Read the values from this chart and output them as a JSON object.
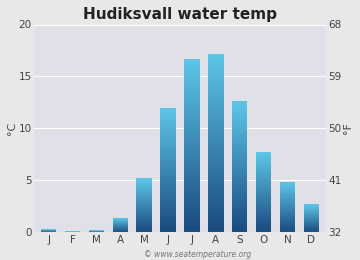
{
  "title": "Hudiksvall water temp",
  "months": [
    "J",
    "F",
    "M",
    "A",
    "M",
    "J",
    "J",
    "A",
    "S",
    "O",
    "N",
    "D"
  ],
  "values_c": [
    0.3,
    0.1,
    0.2,
    1.4,
    5.2,
    12.0,
    16.7,
    17.2,
    12.6,
    7.7,
    4.9,
    2.7
  ],
  "ylim_c": [
    0,
    20
  ],
  "yticks_c": [
    0,
    5,
    10,
    15,
    20
  ],
  "yticks_f": [
    32,
    41,
    50,
    59,
    68
  ],
  "ylabel_left": "°C",
  "ylabel_right": "°F",
  "background_color": "#e8e8e8",
  "plot_bg_color": "#e0e0e8",
  "bar_color_top": "#5ec8e8",
  "bar_color_bottom": "#1a4a80",
  "watermark": "© www.seatemperature.org",
  "title_fontsize": 11,
  "axis_label_fontsize": 8,
  "tick_fontsize": 7.5,
  "watermark_fontsize": 5.5
}
